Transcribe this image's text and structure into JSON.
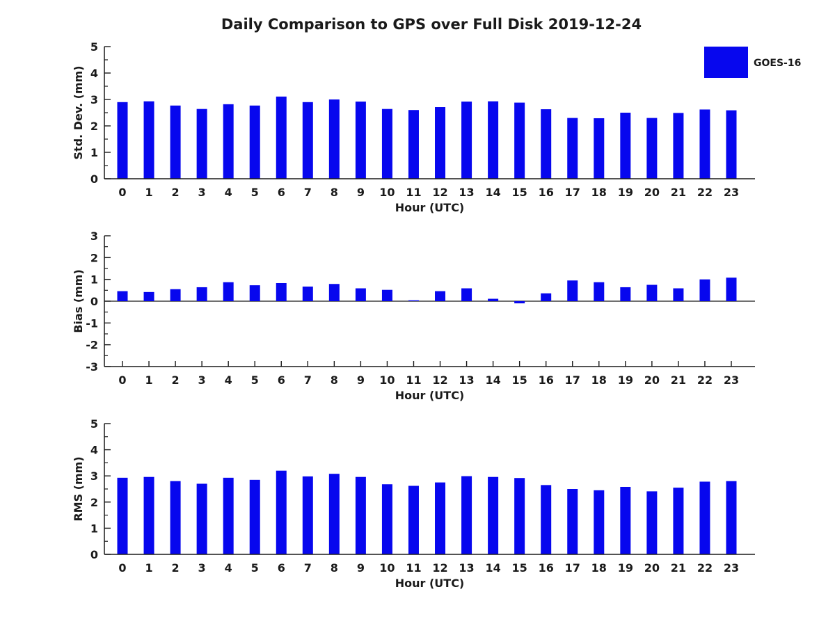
{
  "figure": {
    "title": "Daily Comparison to GPS over Full Disk 2019-12-24",
    "background": "#ffffff"
  },
  "legend": {
    "label": "GOES-16",
    "swatch_color": "#0707ee",
    "position": "top-right-outside-plot"
  },
  "colors": {
    "bar": "#0707ee",
    "axis": "#1a1a1a",
    "text": "#1a1a1a"
  },
  "chart_data": [
    {
      "type": "bar",
      "name": "std-dev",
      "series_name": "GOES-16",
      "xlabel": "Hour (UTC)",
      "ylabel": "Std. Dev. (mm)",
      "categories": [
        "0",
        "1",
        "2",
        "3",
        "4",
        "5",
        "6",
        "7",
        "8",
        "9",
        "10",
        "11",
        "12",
        "13",
        "14",
        "15",
        "16",
        "17",
        "18",
        "19",
        "20",
        "21",
        "22",
        "23"
      ],
      "values": [
        2.9,
        2.93,
        2.77,
        2.64,
        2.82,
        2.77,
        3.11,
        2.9,
        3.0,
        2.92,
        2.64,
        2.6,
        2.71,
        2.92,
        2.93,
        2.88,
        2.63,
        2.3,
        2.29,
        2.5,
        2.3,
        2.49,
        2.62,
        2.59
      ],
      "ylim": [
        0,
        5
      ],
      "yticks": [
        0,
        1,
        2,
        3,
        4,
        5
      ],
      "minor_tick_step": 0.5,
      "grid": false
    },
    {
      "type": "bar",
      "name": "bias",
      "series_name": "GOES-16",
      "xlabel": "Hour (UTC)",
      "ylabel": "Bias (mm)",
      "categories": [
        "0",
        "1",
        "2",
        "3",
        "4",
        "5",
        "6",
        "7",
        "8",
        "9",
        "10",
        "11",
        "12",
        "13",
        "14",
        "15",
        "16",
        "17",
        "18",
        "19",
        "20",
        "21",
        "22",
        "23"
      ],
      "values": [
        0.46,
        0.42,
        0.55,
        0.64,
        0.87,
        0.73,
        0.83,
        0.67,
        0.79,
        0.59,
        0.52,
        0.04,
        0.46,
        0.59,
        0.11,
        -0.1,
        0.36,
        0.95,
        0.87,
        0.64,
        0.75,
        0.59,
        1.0,
        1.08
      ],
      "ylim": [
        -3,
        3
      ],
      "yticks": [
        -3,
        -2,
        -1,
        0,
        1,
        2,
        3
      ],
      "minor_tick_step": 0.5,
      "zero_line": true,
      "grid": false
    },
    {
      "type": "bar",
      "name": "rms",
      "series_name": "GOES-16",
      "xlabel": "Hour (UTC)",
      "ylabel": "RMS (mm)",
      "categories": [
        "0",
        "1",
        "2",
        "3",
        "4",
        "5",
        "6",
        "7",
        "8",
        "9",
        "10",
        "11",
        "12",
        "13",
        "14",
        "15",
        "16",
        "17",
        "18",
        "19",
        "20",
        "21",
        "22",
        "23"
      ],
      "values": [
        2.93,
        2.96,
        2.8,
        2.7,
        2.93,
        2.85,
        3.2,
        2.98,
        3.08,
        2.96,
        2.68,
        2.62,
        2.75,
        2.99,
        2.96,
        2.92,
        2.65,
        2.5,
        2.45,
        2.58,
        2.41,
        2.55,
        2.78,
        2.8
      ],
      "ylim": [
        0,
        5
      ],
      "yticks": [
        0,
        1,
        2,
        3,
        4,
        5
      ],
      "minor_tick_step": 0.5,
      "grid": false
    }
  ]
}
